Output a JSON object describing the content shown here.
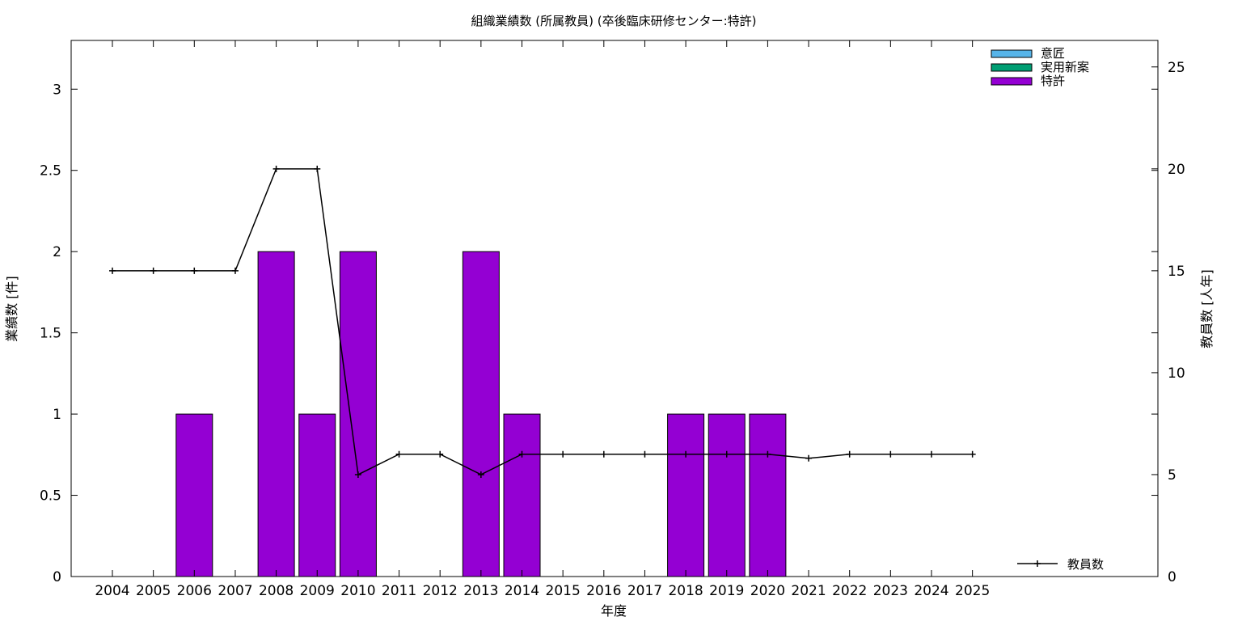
{
  "chart_data": {
    "type": "bar",
    "title": "組織業績数 (所属教員) (卒後臨床研修センター:特許)",
    "xlabel": "年度",
    "ylabel": "業績数 [件]",
    "y2label": "教員数 [人年]",
    "categories": [
      "2004",
      "2005",
      "2006",
      "2007",
      "2008",
      "2009",
      "2010",
      "2011",
      "2012",
      "2013",
      "2014",
      "2015",
      "2016",
      "2017",
      "2018",
      "2019",
      "2020",
      "2021",
      "2022",
      "2023",
      "2024",
      "2025"
    ],
    "ylim": [
      0,
      3.3
    ],
    "y2lim": [
      0,
      26.3
    ],
    "yticks": [
      "0",
      "0.5",
      "1",
      "1.5",
      "2",
      "2.5",
      "3"
    ],
    "y2ticks": [
      "0",
      "5",
      "10",
      "15",
      "20",
      "25"
    ],
    "grid": false,
    "legend_position": "top-right",
    "series": [
      {
        "name": "意匠",
        "kind": "bar",
        "color": "#56b4e9",
        "values": [
          0,
          0,
          0,
          0,
          0,
          0,
          0,
          0,
          0,
          0,
          0,
          0,
          0,
          0,
          0,
          0,
          0,
          0,
          0,
          0,
          0,
          0
        ]
      },
      {
        "name": "実用新案",
        "kind": "bar",
        "color": "#009e73",
        "values": [
          0,
          0,
          0,
          0,
          0,
          0,
          0,
          0,
          0,
          0,
          0,
          0,
          0,
          0,
          0,
          0,
          0,
          0,
          0,
          0,
          0,
          0
        ]
      },
      {
        "name": "特許",
        "kind": "bar",
        "color": "#9400d3",
        "values": [
          0,
          0,
          1,
          0,
          2,
          1,
          2,
          0,
          0,
          2,
          1,
          0,
          0,
          0,
          1,
          1,
          1,
          0,
          0,
          0,
          0,
          0
        ]
      },
      {
        "name": "教員数",
        "kind": "line",
        "axis": "y2",
        "color": "#000000",
        "values": [
          15,
          15,
          15,
          15,
          20,
          20,
          5,
          6,
          6,
          5,
          6,
          6,
          6,
          6,
          6,
          6,
          6,
          5.8,
          6,
          6,
          6,
          6
        ]
      }
    ]
  }
}
